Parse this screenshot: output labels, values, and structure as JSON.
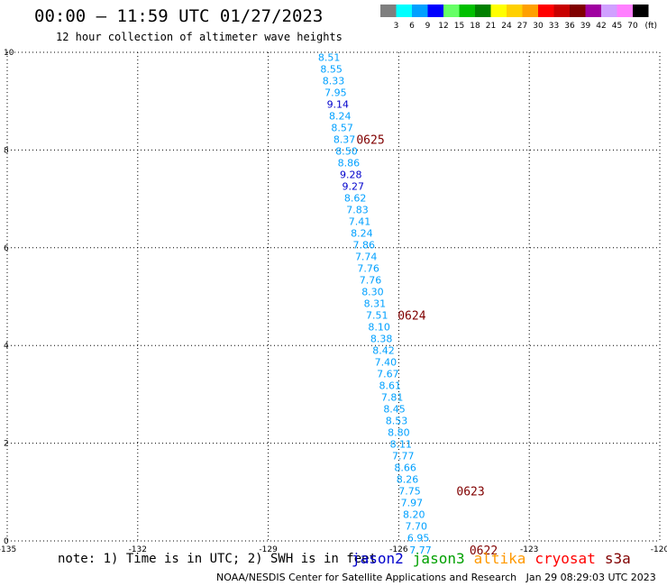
{
  "header": {
    "title": "00:00 – 11:59 UTC 01/27/2023",
    "subtitle": "12 hour collection of altimeter wave heights"
  },
  "color_scale": {
    "labels": [
      "3",
      "6",
      "9",
      "12",
      "15",
      "18",
      "21",
      "24",
      "27",
      "30",
      "33",
      "36",
      "39",
      "42",
      "45",
      "70"
    ],
    "unit": "(ft)",
    "colors": [
      "#7f7f7f",
      "#00ffff",
      "#00a0ff",
      "#0000ff",
      "#66ff66",
      "#00c000",
      "#008000",
      "#ffff00",
      "#ffd000",
      "#ffa000",
      "#ff0000",
      "#c80000",
      "#800000",
      "#a000a0",
      "#d0a0ff",
      "#ff80ff",
      "#000000"
    ]
  },
  "footer": {
    "note": "note: 1) Time is in UTC; 2) SWH is in feet",
    "credit": "NOAA/NESDIS Center for Satellite Applications and Research   Jan 29 08:29:03 UTC 2023"
  },
  "satellites": [
    {
      "name": "jason2",
      "color": "#0000cc"
    },
    {
      "name": "jason3",
      "color": "#00a000"
    },
    {
      "name": "altika",
      "color": "#ff9900"
    },
    {
      "name": "cryosat",
      "color": "#ff0000"
    },
    {
      "name": "s3a",
      "color": "#800000"
    }
  ],
  "chart_data": {
    "type": "scatter",
    "title": "00:00 – 11:59 UTC 01/27/2023",
    "subtitle": "12 hour collection of altimeter wave heights",
    "xlim": [
      -135,
      -120
    ],
    "ylim": [
      0,
      10
    ],
    "x_ticks": [
      "-135",
      "-132",
      "-129",
      "-126",
      "-123",
      "-120"
    ],
    "x_tick_values": [
      -135,
      -132,
      -129,
      -126,
      -123,
      -120
    ],
    "y_ticks": [
      "0",
      "2",
      "4",
      "6",
      "8",
      "10"
    ],
    "y_tick_values": [
      0,
      2,
      4,
      6,
      8,
      10
    ],
    "grid": true,
    "points": [
      {
        "lon": -127.6,
        "lat": 9.9,
        "label": "8.51",
        "color": "#00a0ff"
      },
      {
        "lon": -127.55,
        "lat": 9.66,
        "label": "8.55",
        "color": "#00a0ff"
      },
      {
        "lon": -127.5,
        "lat": 9.42,
        "label": "8.33",
        "color": "#00a0ff"
      },
      {
        "lon": -127.45,
        "lat": 9.18,
        "label": "7.95",
        "color": "#00a0ff"
      },
      {
        "lon": -127.4,
        "lat": 8.94,
        "label": "9.14",
        "color": "#0000cc"
      },
      {
        "lon": -127.35,
        "lat": 8.7,
        "label": "8.24",
        "color": "#00a0ff"
      },
      {
        "lon": -127.3,
        "lat": 8.46,
        "label": "8.57",
        "color": "#00a0ff"
      },
      {
        "lon": -127.25,
        "lat": 8.22,
        "label": "8.37",
        "color": "#00a0ff"
      },
      {
        "lon": -127.2,
        "lat": 7.98,
        "label": "8.50",
        "color": "#00a0ff"
      },
      {
        "lon": -127.15,
        "lat": 7.74,
        "label": "8.86",
        "color": "#00a0ff"
      },
      {
        "lon": -127.1,
        "lat": 7.5,
        "label": "9.28",
        "color": "#0000cc"
      },
      {
        "lon": -127.05,
        "lat": 7.26,
        "label": "9.27",
        "color": "#0000cc"
      },
      {
        "lon": -127.0,
        "lat": 7.02,
        "label": "8.62",
        "color": "#00a0ff"
      },
      {
        "lon": -126.95,
        "lat": 6.78,
        "label": "7.83",
        "color": "#00a0ff"
      },
      {
        "lon": -126.9,
        "lat": 6.54,
        "label": "7.41",
        "color": "#00a0ff"
      },
      {
        "lon": -126.85,
        "lat": 6.3,
        "label": "8.24",
        "color": "#00a0ff"
      },
      {
        "lon": -126.8,
        "lat": 6.06,
        "label": "7.86",
        "color": "#00a0ff"
      },
      {
        "lon": -126.75,
        "lat": 5.82,
        "label": "7.74",
        "color": "#00a0ff"
      },
      {
        "lon": -126.7,
        "lat": 5.58,
        "label": "7.76",
        "color": "#00a0ff"
      },
      {
        "lon": -126.65,
        "lat": 5.34,
        "label": "7.76",
        "color": "#00a0ff"
      },
      {
        "lon": -126.6,
        "lat": 5.1,
        "label": "8.30",
        "color": "#00a0ff"
      },
      {
        "lon": -126.55,
        "lat": 4.86,
        "label": "8.31",
        "color": "#00a0ff"
      },
      {
        "lon": -126.5,
        "lat": 4.62,
        "label": "7.51",
        "color": "#00a0ff"
      },
      {
        "lon": -126.45,
        "lat": 4.38,
        "label": "8.10",
        "color": "#00a0ff"
      },
      {
        "lon": -126.4,
        "lat": 4.14,
        "label": "8.38",
        "color": "#00a0ff"
      },
      {
        "lon": -126.35,
        "lat": 3.9,
        "label": "8.42",
        "color": "#00a0ff"
      },
      {
        "lon": -126.3,
        "lat": 3.66,
        "label": "7.40",
        "color": "#00a0ff"
      },
      {
        "lon": -126.25,
        "lat": 3.42,
        "label": "7.67",
        "color": "#00a0ff"
      },
      {
        "lon": -126.2,
        "lat": 3.18,
        "label": "8.61",
        "color": "#00a0ff"
      },
      {
        "lon": -126.15,
        "lat": 2.94,
        "label": "7.81",
        "color": "#00a0ff"
      },
      {
        "lon": -126.1,
        "lat": 2.7,
        "label": "8.45",
        "color": "#00a0ff"
      },
      {
        "lon": -126.05,
        "lat": 2.46,
        "label": "8.53",
        "color": "#00a0ff"
      },
      {
        "lon": -126.0,
        "lat": 2.22,
        "label": "8.80",
        "color": "#00a0ff"
      },
      {
        "lon": -125.95,
        "lat": 1.98,
        "label": "8.11",
        "color": "#00a0ff"
      },
      {
        "lon": -125.9,
        "lat": 1.74,
        "label": "7.77",
        "color": "#00a0ff"
      },
      {
        "lon": -125.85,
        "lat": 1.5,
        "label": "8.66",
        "color": "#00a0ff"
      },
      {
        "lon": -125.8,
        "lat": 1.26,
        "label": "8.26",
        "color": "#00a0ff"
      },
      {
        "lon": -125.75,
        "lat": 1.02,
        "label": "7.75",
        "color": "#00a0ff"
      },
      {
        "lon": -125.7,
        "lat": 0.78,
        "label": "7.97",
        "color": "#00a0ff"
      },
      {
        "lon": -125.65,
        "lat": 0.54,
        "label": "8.20",
        "color": "#00a0ff"
      },
      {
        "lon": -125.6,
        "lat": 0.3,
        "label": "7.70",
        "color": "#00a0ff"
      },
      {
        "lon": -125.55,
        "lat": 0.06,
        "label": "6.95",
        "color": "#00a0ff"
      },
      {
        "lon": -125.5,
        "lat": -0.18,
        "label": "7.77",
        "color": "#00a0ff"
      }
    ],
    "time_labels": [
      {
        "lon": -126.65,
        "lat": 8.22,
        "label": "0625"
      },
      {
        "lon": -125.7,
        "lat": 4.62,
        "label": "0624"
      },
      {
        "lon": -124.35,
        "lat": 1.02,
        "label": "0623"
      },
      {
        "lon": -124.05,
        "lat": -0.18,
        "label": "0622"
      }
    ]
  }
}
